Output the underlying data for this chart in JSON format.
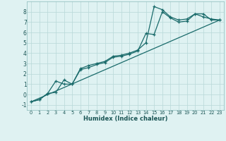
{
  "xlabel": "Humidex (Indice chaleur)",
  "bg_color": "#dff2f2",
  "grid_color": "#b8d8d8",
  "line_color": "#1a6b6b",
  "xlim": [
    -0.5,
    23.5
  ],
  "ylim": [
    -1.5,
    9.0
  ],
  "yticks": [
    -1,
    0,
    1,
    2,
    3,
    4,
    5,
    6,
    7,
    8
  ],
  "xticks": [
    0,
    1,
    2,
    3,
    4,
    5,
    6,
    7,
    8,
    9,
    10,
    11,
    12,
    13,
    14,
    15,
    16,
    17,
    18,
    19,
    20,
    21,
    22,
    23
  ],
  "series1_x": [
    0,
    1,
    2,
    3,
    4,
    5,
    6,
    7,
    8,
    9,
    10,
    11,
    12,
    13,
    14,
    15,
    16,
    17,
    18,
    19,
    20,
    21,
    22,
    23
  ],
  "series1_y": [
    -0.7,
    -0.5,
    0.1,
    0.2,
    1.4,
    1.0,
    2.5,
    2.8,
    3.0,
    3.2,
    3.7,
    3.8,
    4.0,
    4.3,
    5.0,
    8.5,
    8.2,
    7.5,
    7.2,
    7.3,
    7.8,
    7.8,
    7.2,
    7.2
  ],
  "series2_x": [
    0,
    1,
    2,
    3,
    4,
    5,
    6,
    7,
    8,
    9,
    10,
    11,
    12,
    13,
    14,
    15,
    16,
    17,
    18,
    19,
    20,
    21,
    22,
    23
  ],
  "series2_y": [
    -0.7,
    -0.5,
    0.1,
    1.3,
    1.0,
    1.0,
    2.4,
    2.6,
    2.9,
    3.1,
    3.6,
    3.7,
    3.9,
    4.2,
    5.9,
    5.8,
    8.0,
    7.4,
    7.0,
    7.1,
    7.8,
    7.5,
    7.3,
    7.2
  ],
  "series3_x": [
    0,
    23
  ],
  "series3_y": [
    -0.7,
    7.2
  ]
}
